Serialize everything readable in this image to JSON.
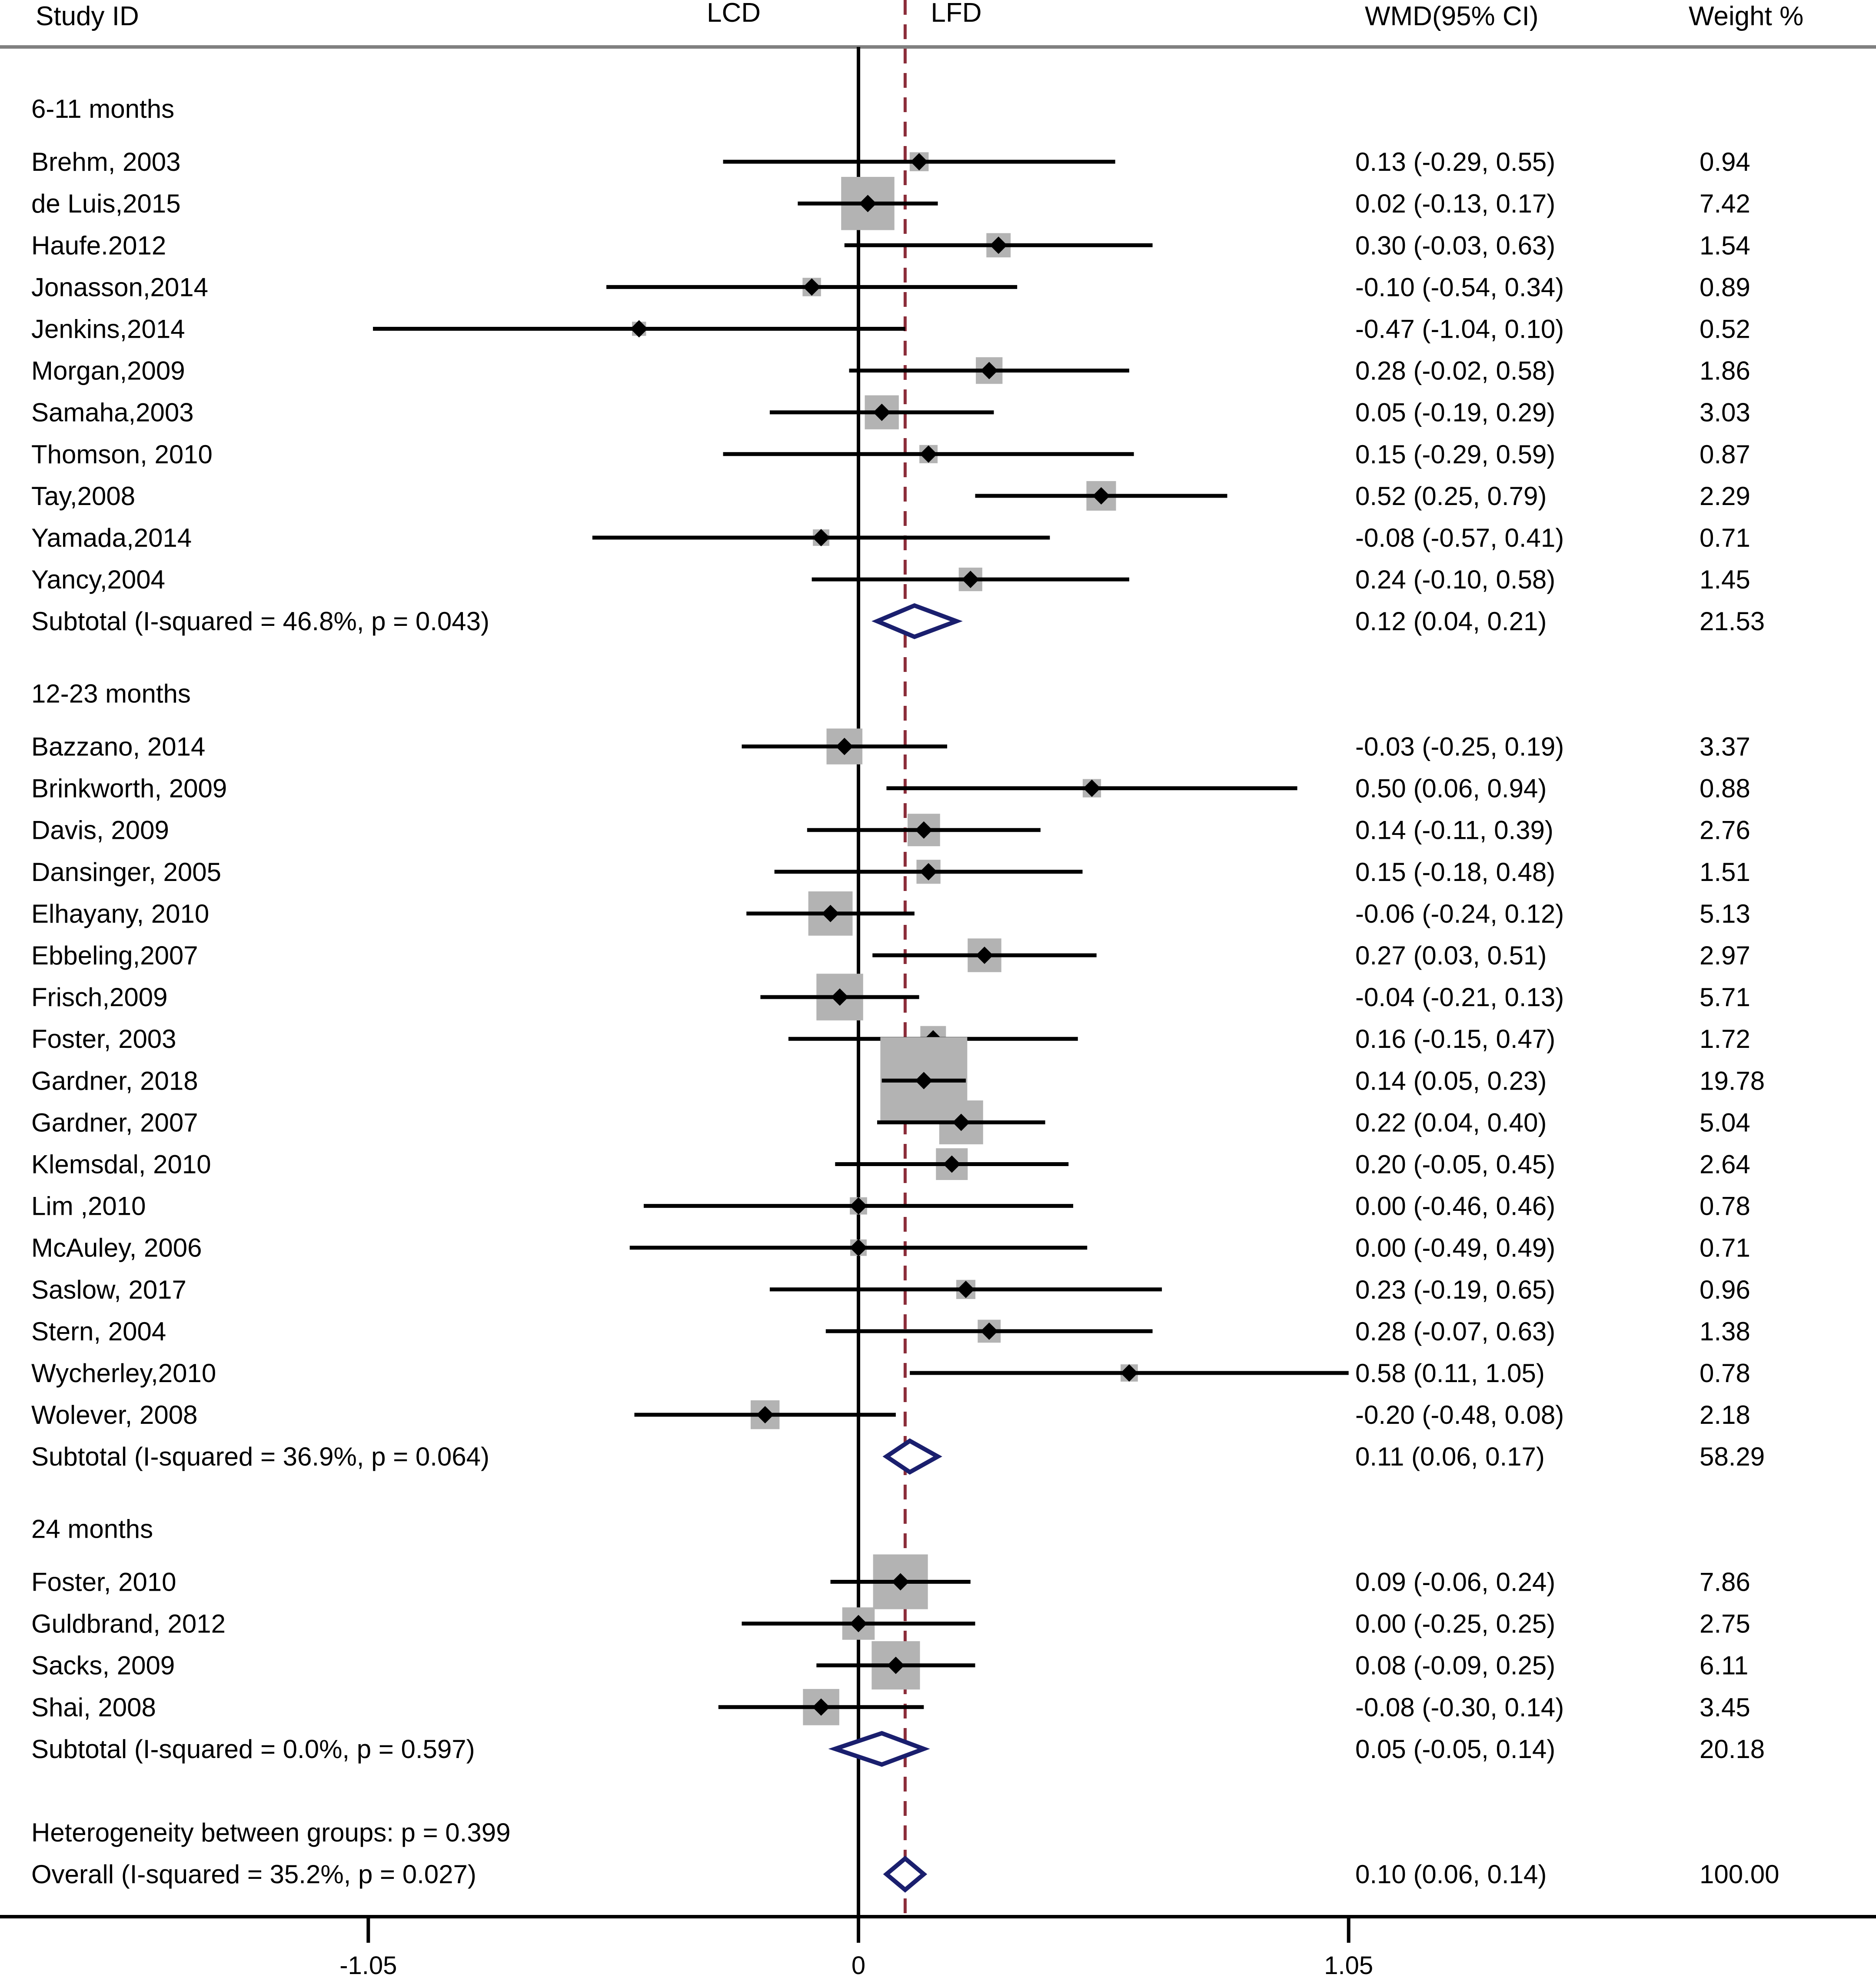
{
  "chart_data": {
    "type": "forest",
    "headers": {
      "study": "Study  ID",
      "left_favors": "LCD",
      "right_favors": "LFD",
      "estimate": "WMD(95% CI)",
      "weight": "Weight %"
    },
    "x_axis": {
      "ticks": [
        {
          "value": -1.05,
          "label": "-1.05"
        },
        {
          "value": 0,
          "label": "0"
        },
        {
          "value": 1.05,
          "label": "1.05"
        }
      ],
      "null_line": 0,
      "overall_reference_line": 0.1
    },
    "groups": [
      {
        "label": "6-11 months",
        "studies": [
          {
            "study": "Brehm, 2003",
            "wmd": 0.13,
            "lo": -0.29,
            "hi": 0.55,
            "ci_text": "0.13 (-0.29, 0.55)",
            "weight": "0.94"
          },
          {
            "study": "de Luis,2015",
            "wmd": 0.02,
            "lo": -0.13,
            "hi": 0.17,
            "ci_text": "0.02 (-0.13, 0.17)",
            "weight": "7.42"
          },
          {
            "study": "Haufe.2012",
            "wmd": 0.3,
            "lo": -0.03,
            "hi": 0.63,
            "ci_text": "0.30 (-0.03, 0.63)",
            "weight": "1.54"
          },
          {
            "study": "Jonasson,2014",
            "wmd": -0.1,
            "lo": -0.54,
            "hi": 0.34,
            "ci_text": "-0.10 (-0.54, 0.34)",
            "weight": "0.89"
          },
          {
            "study": "Jenkins,2014",
            "wmd": -0.47,
            "lo": -1.04,
            "hi": 0.1,
            "ci_text": "-0.47 (-1.04, 0.10)",
            "weight": "0.52"
          },
          {
            "study": "Morgan,2009",
            "wmd": 0.28,
            "lo": -0.02,
            "hi": 0.58,
            "ci_text": "0.28 (-0.02, 0.58)",
            "weight": "1.86"
          },
          {
            "study": "Samaha,2003",
            "wmd": 0.05,
            "lo": -0.19,
            "hi": 0.29,
            "ci_text": "0.05 (-0.19, 0.29)",
            "weight": "3.03"
          },
          {
            "study": "Thomson, 2010",
            "wmd": 0.15,
            "lo": -0.29,
            "hi": 0.59,
            "ci_text": "0.15 (-0.29, 0.59)",
            "weight": "0.87"
          },
          {
            "study": "Tay,2008",
            "wmd": 0.52,
            "lo": 0.25,
            "hi": 0.79,
            "ci_text": "0.52 (0.25, 0.79)",
            "weight": "2.29"
          },
          {
            "study": "Yamada,2014",
            "wmd": -0.08,
            "lo": -0.57,
            "hi": 0.41,
            "ci_text": "-0.08 (-0.57, 0.41)",
            "weight": "0.71"
          },
          {
            "study": "Yancy,2004",
            "wmd": 0.24,
            "lo": -0.1,
            "hi": 0.58,
            "ci_text": "0.24 (-0.10, 0.58)",
            "weight": "1.45"
          }
        ],
        "subtotal": {
          "label": "Subtotal  (I-squared = 46.8%, p = 0.043)",
          "wmd": 0.12,
          "lo": 0.04,
          "hi": 0.21,
          "ci_text": "0.12 (0.04, 0.21)",
          "weight": "21.53"
        }
      },
      {
        "label": "12-23 months",
        "studies": [
          {
            "study": "Bazzano, 2014",
            "wmd": -0.03,
            "lo": -0.25,
            "hi": 0.19,
            "ci_text": "-0.03 (-0.25, 0.19)",
            "weight": "3.37"
          },
          {
            "study": "Brinkworth, 2009",
            "wmd": 0.5,
            "lo": 0.06,
            "hi": 0.94,
            "ci_text": "0.50 (0.06, 0.94)",
            "weight": "0.88"
          },
          {
            "study": "Davis, 2009",
            "wmd": 0.14,
            "lo": -0.11,
            "hi": 0.39,
            "ci_text": "0.14 (-0.11, 0.39)",
            "weight": "2.76"
          },
          {
            "study": "Dansinger, 2005",
            "wmd": 0.15,
            "lo": -0.18,
            "hi": 0.48,
            "ci_text": "0.15 (-0.18, 0.48)",
            "weight": "1.51"
          },
          {
            "study": "Elhayany, 2010",
            "wmd": -0.06,
            "lo": -0.24,
            "hi": 0.12,
            "ci_text": "-0.06 (-0.24, 0.12)",
            "weight": "5.13"
          },
          {
            "study": "Ebbeling,2007",
            "wmd": 0.27,
            "lo": 0.03,
            "hi": 0.51,
            "ci_text": "0.27 (0.03, 0.51)",
            "weight": "2.97"
          },
          {
            "study": "Frisch,2009",
            "wmd": -0.04,
            "lo": -0.21,
            "hi": 0.13,
            "ci_text": "-0.04 (-0.21, 0.13)",
            "weight": "5.71"
          },
          {
            "study": "Foster, 2003",
            "wmd": 0.16,
            "lo": -0.15,
            "hi": 0.47,
            "ci_text": "0.16 (-0.15, 0.47)",
            "weight": "1.72"
          },
          {
            "study": "Gardner, 2018",
            "wmd": 0.14,
            "lo": 0.05,
            "hi": 0.23,
            "ci_text": "0.14 (0.05, 0.23)",
            "weight": "19.78"
          },
          {
            "study": "Gardner, 2007",
            "wmd": 0.22,
            "lo": 0.04,
            "hi": 0.4,
            "ci_text": "0.22 (0.04, 0.40)",
            "weight": "5.04"
          },
          {
            "study": "Klemsdal, 2010",
            "wmd": 0.2,
            "lo": -0.05,
            "hi": 0.45,
            "ci_text": "0.20 (-0.05, 0.45)",
            "weight": "2.64"
          },
          {
            "study": "Lim ,2010",
            "wmd": 0.0,
            "lo": -0.46,
            "hi": 0.46,
            "ci_text": "0.00 (-0.46, 0.46)",
            "weight": "0.78"
          },
          {
            "study": "McAuley, 2006",
            "wmd": 0.0,
            "lo": -0.49,
            "hi": 0.49,
            "ci_text": "0.00 (-0.49, 0.49)",
            "weight": "0.71"
          },
          {
            "study": "Saslow, 2017",
            "wmd": 0.23,
            "lo": -0.19,
            "hi": 0.65,
            "ci_text": "0.23 (-0.19, 0.65)",
            "weight": "0.96"
          },
          {
            "study": "Stern, 2004",
            "wmd": 0.28,
            "lo": -0.07,
            "hi": 0.63,
            "ci_text": "0.28 (-0.07, 0.63)",
            "weight": "1.38"
          },
          {
            "study": "Wycherley,2010",
            "wmd": 0.58,
            "lo": 0.11,
            "hi": 1.05,
            "ci_text": "0.58 (0.11, 1.05)",
            "weight": "0.78"
          },
          {
            "study": "Wolever, 2008",
            "wmd": -0.2,
            "lo": -0.48,
            "hi": 0.08,
            "ci_text": "-0.20 (-0.48, 0.08)",
            "weight": "2.18"
          }
        ],
        "subtotal": {
          "label": "Subtotal  (I-squared = 36.9%, p = 0.064)",
          "wmd": 0.11,
          "lo": 0.06,
          "hi": 0.17,
          "ci_text": "0.11 (0.06, 0.17)",
          "weight": "58.29"
        }
      },
      {
        "label": "24 months",
        "studies": [
          {
            "study": "Foster, 2010",
            "wmd": 0.09,
            "lo": -0.06,
            "hi": 0.24,
            "ci_text": "0.09 (-0.06, 0.24)",
            "weight": "7.86"
          },
          {
            "study": "Guldbrand, 2012",
            "wmd": 0.0,
            "lo": -0.25,
            "hi": 0.25,
            "ci_text": "0.00 (-0.25, 0.25)",
            "weight": "2.75"
          },
          {
            "study": "Sacks, 2009",
            "wmd": 0.08,
            "lo": -0.09,
            "hi": 0.25,
            "ci_text": "0.08 (-0.09, 0.25)",
            "weight": "6.11"
          },
          {
            "study": "Shai, 2008",
            "wmd": -0.08,
            "lo": -0.3,
            "hi": 0.14,
            "ci_text": "-0.08 (-0.30, 0.14)",
            "weight": "3.45"
          }
        ],
        "subtotal": {
          "label": "Subtotal  (I-squared = 0.0%, p = 0.597)",
          "wmd": 0.05,
          "lo": -0.05,
          "hi": 0.14,
          "ci_text": "0.05 (-0.05, 0.14)",
          "weight": "20.18"
        }
      }
    ],
    "heterogeneity_between_groups": "Heterogeneity between groups: p = 0.399",
    "overall": {
      "label": "Overall  (I-squared = 35.2%, p = 0.027)",
      "wmd": 0.1,
      "lo": 0.06,
      "hi": 0.14,
      "ci_text": "0.10 (0.06, 0.14)",
      "weight": "100.00"
    },
    "colors": {
      "text": "#000000",
      "weight_box": "#b3b3b3",
      "diamond": "#1a1f6e",
      "reference_line": "#8b2d3a",
      "axis": "#000000",
      "header_rule": "#808080"
    }
  }
}
